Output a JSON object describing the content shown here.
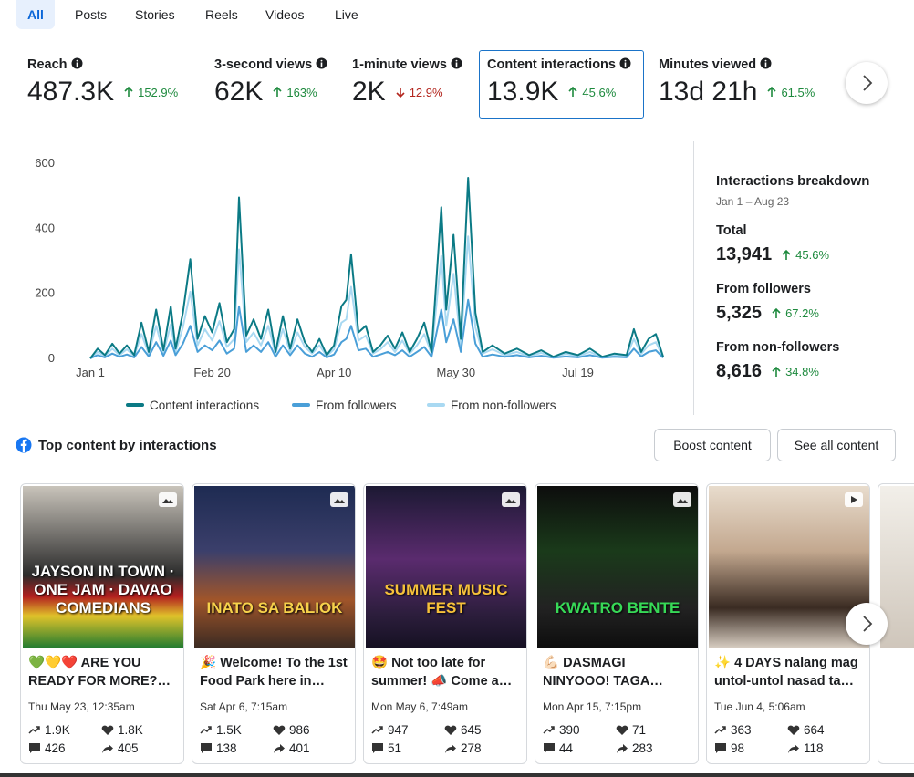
{
  "tabs": [
    "All",
    "Posts",
    "Stories",
    "Reels",
    "Videos",
    "Live"
  ],
  "active_tab": 0,
  "metrics": [
    {
      "label": "Reach",
      "value": "487.3K",
      "change": "152.9%",
      "direction": "up"
    },
    {
      "label": "3-second views",
      "value": "62K",
      "change": "163%",
      "direction": "up"
    },
    {
      "label": "1-minute views",
      "value": "2K",
      "change": "12.9%",
      "direction": "down"
    },
    {
      "label": "Content interactions",
      "value": "13.9K",
      "change": "45.6%",
      "direction": "up",
      "selected": true
    },
    {
      "label": "Minutes viewed",
      "value": "13d 21h",
      "change": "61.5%",
      "direction": "up"
    }
  ],
  "chart_data": {
    "type": "line",
    "grid": false,
    "x": [
      0,
      3,
      6,
      9,
      12,
      15,
      18,
      21,
      24,
      27,
      30,
      33,
      35,
      38,
      41,
      44,
      47,
      50,
      53,
      56,
      59,
      61,
      64,
      67,
      70,
      73,
      76,
      79,
      82,
      85,
      88,
      91,
      94,
      97,
      100,
      103,
      105,
      107,
      110,
      113,
      116,
      119,
      122,
      125,
      128,
      131,
      134,
      137,
      140,
      144,
      146,
      149,
      152,
      155,
      158,
      161,
      165,
      170,
      175,
      180,
      185,
      190,
      195,
      200,
      205,
      210,
      215,
      220,
      223,
      226,
      229,
      232,
      235
    ],
    "xlim": [
      0,
      235
    ],
    "xticks": [
      {
        "value": 0,
        "label": "Jan 1"
      },
      {
        "value": 50,
        "label": "Feb 20"
      },
      {
        "value": 100,
        "label": "Apr 10"
      },
      {
        "value": 150,
        "label": "May 30"
      },
      {
        "value": 200,
        "label": "Jul 19"
      }
    ],
    "ylim": [
      0,
      600
    ],
    "yticks": [
      0,
      200,
      400,
      600
    ],
    "series": [
      {
        "name": "Content interactions",
        "color": "#0b7a85",
        "values": [
          0,
          30,
          10,
          45,
          15,
          40,
          10,
          110,
          20,
          150,
          25,
          160,
          30,
          140,
          305,
          60,
          130,
          80,
          170,
          50,
          90,
          495,
          70,
          120,
          60,
          150,
          20,
          130,
          30,
          120,
          50,
          20,
          60,
          10,
          40,
          160,
          180,
          320,
          80,
          100,
          20,
          40,
          70,
          30,
          80,
          20,
          60,
          110,
          20,
          465,
          150,
          380,
          60,
          555,
          140,
          20,
          40,
          15,
          30,
          10,
          25,
          5,
          20,
          10,
          30,
          5,
          15,
          10,
          90,
          20,
          60,
          75,
          5
        ]
      },
      {
        "name": "From followers",
        "color": "#4a9fd8",
        "values": [
          0,
          10,
          3,
          15,
          5,
          12,
          3,
          35,
          6,
          50,
          8,
          55,
          10,
          45,
          100,
          20,
          40,
          25,
          55,
          15,
          30,
          160,
          20,
          40,
          20,
          50,
          5,
          40,
          10,
          40,
          15,
          5,
          20,
          3,
          12,
          50,
          60,
          100,
          25,
          30,
          5,
          12,
          20,
          10,
          25,
          5,
          20,
          35,
          5,
          150,
          50,
          120,
          20,
          180,
          45,
          5,
          12,
          5,
          10,
          3,
          8,
          2,
          6,
          3,
          10,
          2,
          5,
          3,
          30,
          6,
          20,
          25,
          2
        ]
      },
      {
        "name": "From non-followers",
        "color": "#a9d9f2",
        "values": [
          0,
          20,
          7,
          30,
          10,
          28,
          7,
          75,
          14,
          100,
          17,
          105,
          20,
          95,
          205,
          40,
          90,
          55,
          115,
          35,
          60,
          335,
          50,
          80,
          40,
          100,
          15,
          90,
          20,
          80,
          35,
          15,
          40,
          7,
          28,
          110,
          120,
          220,
          55,
          70,
          15,
          28,
          50,
          20,
          55,
          15,
          40,
          75,
          15,
          315,
          100,
          260,
          40,
          375,
          95,
          15,
          28,
          10,
          20,
          7,
          17,
          3,
          14,
          7,
          20,
          3,
          10,
          7,
          60,
          14,
          40,
          50,
          3
        ]
      }
    ]
  },
  "breakdown": {
    "title": "Interactions breakdown",
    "date_range": "Jan 1 – Aug 23",
    "rows": [
      {
        "label": "Total",
        "value": "13,941",
        "change": "45.6%"
      },
      {
        "label": "From followers",
        "value": "5,325",
        "change": "67.2%"
      },
      {
        "label": "From non-followers",
        "value": "8,616",
        "change": "34.8%"
      }
    ]
  },
  "top_content": {
    "title": "Top content by interactions",
    "buttons": [
      "Boost content",
      "See all content"
    ],
    "posts": [
      {
        "poster": "JAYSON IN TOWN · ONE JAM · DAVAO COMEDIANS",
        "caption": "💚💛❤️ ARE YOU READY FOR MORE?…",
        "date": "Thu May 23, 12:35am",
        "views": "1.9K",
        "reactions": "1.8K",
        "comments": "426",
        "shares": "405"
      },
      {
        "poster": "INATO SA BALIOK",
        "caption": "🎉 Welcome! To the 1st Food Park here in…",
        "date": "Sat Apr 6, 7:15am",
        "views": "1.5K",
        "reactions": "986",
        "comments": "138",
        "shares": "401"
      },
      {
        "poster": "SUMMER MUSIC FEST",
        "caption": "🤩 Not too late for summer! 📣 Come a…",
        "date": "Mon May 6, 7:49am",
        "views": "947",
        "reactions": "645",
        "comments": "51",
        "shares": "278"
      },
      {
        "poster": "KWATRO BENTE",
        "caption": "💪🏻 DASMAGI NINYOOO! TAGA…",
        "date": "Mon Apr 15, 7:15pm",
        "views": "390",
        "reactions": "71",
        "comments": "44",
        "shares": "283"
      },
      {
        "poster": "",
        "caption": "✨ 4 DAYS nalang mag untol-untol nasad ta…",
        "date": "Tue Jun 4, 5:06am",
        "views": "363",
        "reactions": "664",
        "comments": "98",
        "shares": "118"
      }
    ]
  }
}
